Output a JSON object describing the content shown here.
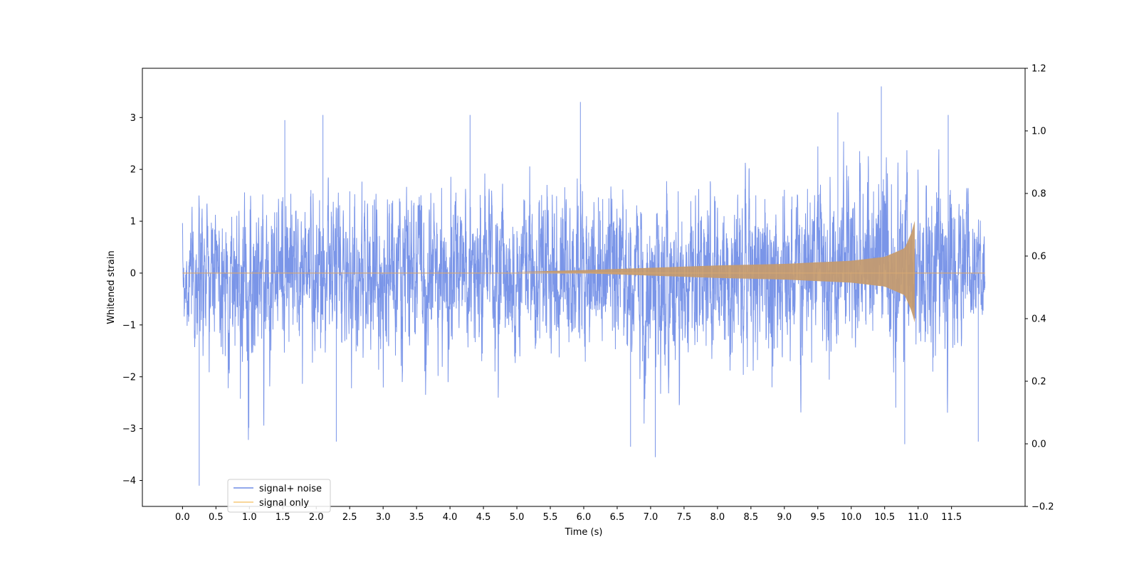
{
  "chart_data": {
    "type": "line",
    "title": "",
    "xlabel": "Time (s)",
    "ylabel": "Whitened strain",
    "xlim": [
      -0.6,
      12.6
    ],
    "ylim": [
      -4.5,
      3.95
    ],
    "y2lim": [
      -0.2,
      1.2
    ],
    "xticks": [
      0.0,
      0.5,
      1.0,
      1.5,
      2.0,
      2.5,
      3.0,
      3.5,
      4.0,
      4.5,
      5.0,
      5.5,
      6.0,
      6.5,
      7.0,
      7.5,
      8.0,
      8.5,
      9.0,
      9.5,
      10.0,
      10.5,
      11.0,
      11.5
    ],
    "xticklabels": [
      "0.0",
      "0.5",
      "1.0",
      "1.5",
      "2.0",
      "2.5",
      "3.0",
      "3.5",
      "4.0",
      "4.5",
      "5.0",
      "5.5",
      "6.0",
      "6.5",
      "7.0",
      "7.5",
      "8.0",
      "8.5",
      "9.0",
      "9.5",
      "10.0",
      "10.5",
      "11.0",
      "11.5"
    ],
    "yticks": [
      -4,
      -3,
      -2,
      -1,
      0,
      1,
      2,
      3
    ],
    "yticklabels": [
      "−4",
      "−3",
      "−2",
      "−1",
      "0",
      "1",
      "2",
      "3"
    ],
    "y2ticks": [
      -0.2,
      0.0,
      0.2,
      0.4,
      0.6,
      0.8,
      1.0,
      1.2
    ],
    "y2ticklabels": [
      "−0.2",
      "0.0",
      "0.2",
      "0.4",
      "0.6",
      "0.8",
      "1.0",
      "1.2"
    ],
    "grid": false,
    "legend_position": "lower-left",
    "series": [
      {
        "name": "signal+ noise",
        "color": "#6f8ce6",
        "x_range": [
          0.0,
          12.0
        ],
        "envelope": {
          "x": [
            0.0,
            0.25,
            1.5,
            2.0,
            3.0,
            4.0,
            5.0,
            5.95,
            6.5,
            7.05,
            8.0,
            9.0,
            10.0,
            10.5,
            11.0,
            11.5,
            12.0
          ],
          "upper": [
            1.2,
            1.8,
            2.9,
            3.05,
            2.6,
            2.7,
            2.5,
            3.25,
            2.8,
            2.4,
            2.6,
            2.8,
            2.9,
            3.55,
            2.9,
            3.05,
            1.7
          ],
          "lower": [
            -1.6,
            -4.1,
            -2.6,
            -2.6,
            -2.9,
            -2.9,
            -2.6,
            -2.5,
            -3.35,
            -3.5,
            -2.7,
            -3.1,
            -2.7,
            -2.6,
            -3.3,
            -3.2,
            -1.9
          ]
        },
        "peaks": [
          {
            "x": 0.25,
            "y": -4.1
          },
          {
            "x": 1.53,
            "y": 2.95
          },
          {
            "x": 2.1,
            "y": 3.05
          },
          {
            "x": 2.3,
            "y": -3.25
          },
          {
            "x": 4.3,
            "y": 3.05
          },
          {
            "x": 5.95,
            "y": 3.3
          },
          {
            "x": 6.7,
            "y": -3.35
          },
          {
            "x": 7.07,
            "y": -3.55
          },
          {
            "x": 9.8,
            "y": 3.1
          },
          {
            "x": 10.45,
            "y": 3.6
          },
          {
            "x": 10.8,
            "y": -3.3
          },
          {
            "x": 11.45,
            "y": 3.05
          },
          {
            "x": 11.9,
            "y": -3.25
          }
        ]
      },
      {
        "name": "signal only",
        "color": "#f5a623",
        "axis": "right",
        "baseline": 0.0,
        "amplitude": {
          "x": [
            0.0,
            5.0,
            6.0,
            7.0,
            8.0,
            9.0,
            10.0,
            10.5,
            10.8,
            10.9,
            10.95,
            10.96,
            12.0
          ],
          "a": [
            0.0,
            0.0,
            0.02,
            0.05,
            0.08,
            0.1,
            0.14,
            0.19,
            0.3,
            0.5,
            0.65,
            0.0,
            0.0
          ]
        }
      }
    ]
  }
}
